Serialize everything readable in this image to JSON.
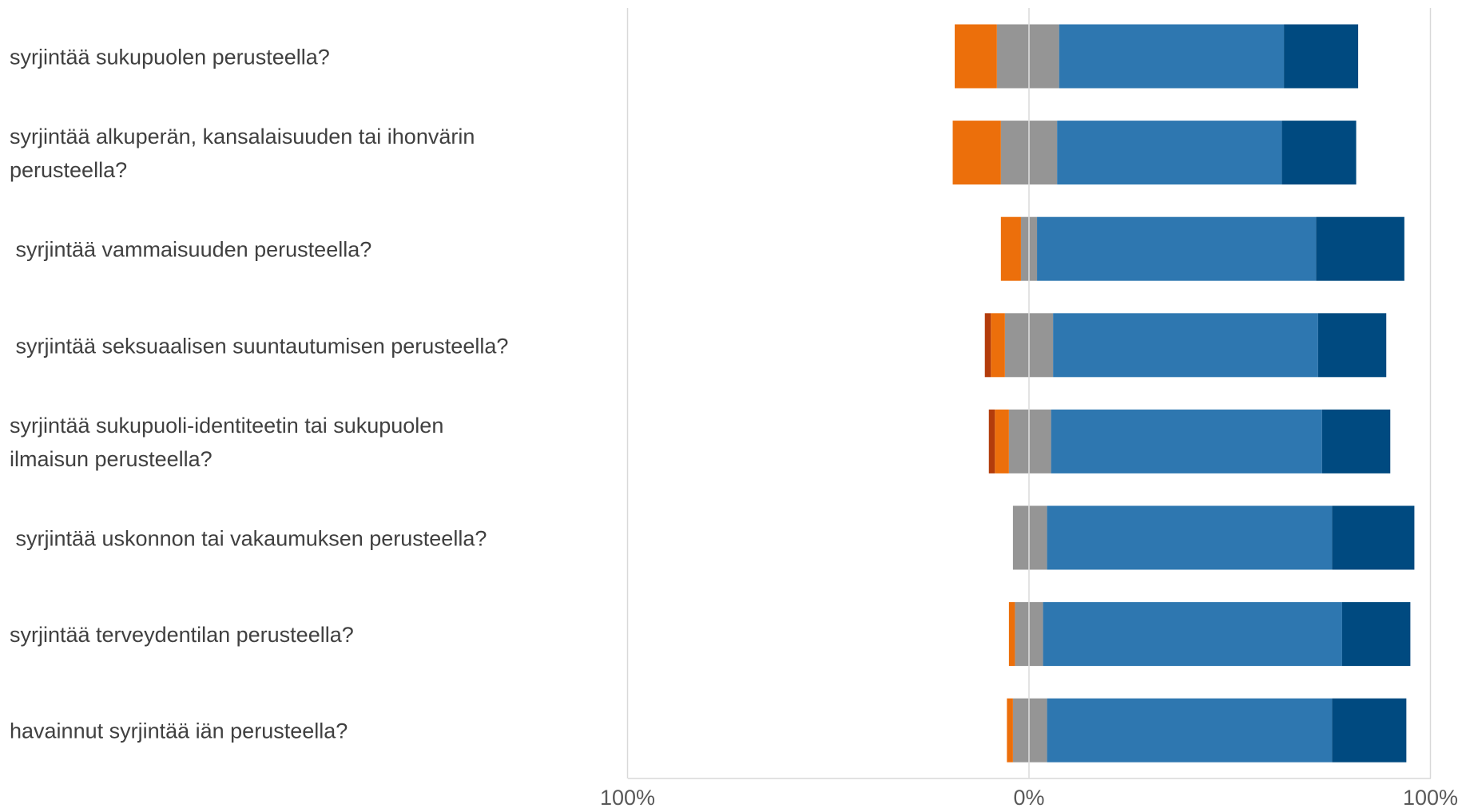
{
  "chart_data": {
    "type": "bar",
    "orientation": "horizontal",
    "stacked": "diverging",
    "categories": [
      [
        "syrjintää sukupuolen perusteella?"
      ],
      [
        "syrjintää alkuperän, kansalaisuuden tai ihonvärin",
        "perusteella?"
      ],
      [
        " syrjintää vammaisuuden perusteella?"
      ],
      [
        " syrjintää seksuaalisen suuntautumisen perusteella?"
      ],
      [
        "syrjintää sukupuoli-identiteetin tai sukupuolen",
        "ilmaisun perusteella?"
      ],
      [
        " syrjintää uskonnon tai vakaumuksen perusteella?"
      ],
      [
        "syrjintää terveydentilan perusteella?"
      ],
      [
        "havainnut syrjintää iän perusteella?"
      ]
    ],
    "negative_series": [
      {
        "color": "#b33c0b",
        "values": [
          0,
          0,
          0,
          1.5,
          1.5,
          0,
          0,
          0
        ]
      },
      {
        "color": "#ec6f0b",
        "values": [
          10.5,
          12,
          5,
          3.5,
          3.5,
          0,
          1.5,
          1.5
        ]
      },
      {
        "color": "#959595",
        "values": [
          8,
          7,
          2,
          6,
          5,
          4,
          3.5,
          4
        ]
      }
    ],
    "positive_series": [
      {
        "color": "#959595",
        "values": [
          7.5,
          7,
          2,
          6,
          5.5,
          4.5,
          3.5,
          4.5
        ]
      },
      {
        "color": "#2e77b0",
        "values": [
          56,
          56,
          69.5,
          66,
          67.5,
          71,
          74.5,
          71
        ]
      },
      {
        "color": "#004a80",
        "values": [
          18.5,
          18.5,
          22,
          17,
          17,
          20.5,
          17,
          18.5
        ]
      }
    ],
    "xlim": [
      -100,
      100
    ],
    "xticks": [
      -100,
      0,
      100
    ],
    "tick_labels": [
      "100%",
      "0%",
      "100%"
    ],
    "grid": true,
    "legend": "none",
    "title": "",
    "xlabel": "",
    "ylabel": ""
  }
}
